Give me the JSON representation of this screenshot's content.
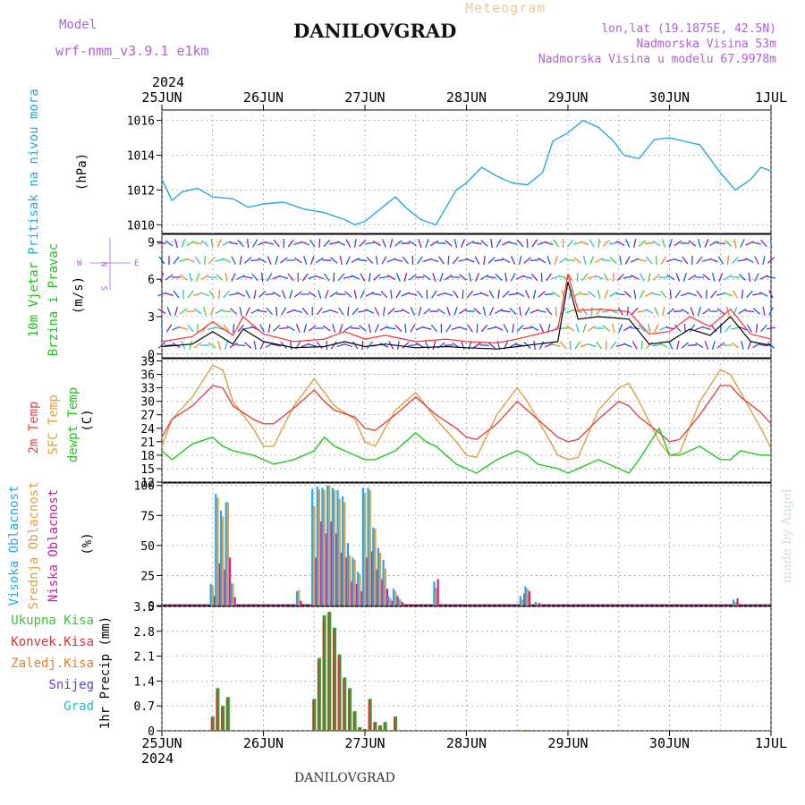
{
  "header": {
    "model_label": "Model",
    "model_name": "wrf-nmm_v3.9.1 e1km",
    "location": "DANILOVGRAD",
    "meteogram_label": "Meteogram",
    "lonlat": "lon,lat (19.1875E, 42.5N)",
    "elevation": "Nadmorska Visina 53m",
    "model_elevation": "Nadmorska Visina u modelu 67.9978m",
    "year_top": "2024",
    "year_bottom": "2024",
    "footer_location": "DANILOVGRAD",
    "watermark": "made by Angel"
  },
  "colors": {
    "pressure": "#2aa8e0",
    "t2m": "#e04848",
    "sfc": "#e0a040",
    "dewpt": "#20c820",
    "high_cloud": "#20a8f0",
    "mid_cloud": "#e0a040",
    "low_cloud": "#d020a0",
    "total_precip": "#30a030",
    "conv_precip": "#e03030",
    "wind_speed": "#000000",
    "wind_gust": "#ff3030"
  },
  "chart_data": [
    {
      "type": "line",
      "title": "",
      "ylabel_name": "Pritisak na nivou mora",
      "ylabel_unit": "(hPa)",
      "ylim": [
        1009.5,
        1016.6
      ],
      "yticks": [
        1010,
        1012,
        1014,
        1016
      ],
      "x_days": [
        "25JUN",
        "26JUN",
        "27JUN",
        "28JUN",
        "29JUN",
        "30JUN",
        "1JUL"
      ],
      "series": [
        {
          "x_day": [
            0,
            0.1,
            0.2,
            0.35,
            0.5,
            0.7,
            0.85,
            1.0,
            1.2,
            1.4,
            1.6,
            1.8,
            1.9,
            2.0,
            2.15,
            2.3,
            2.4,
            2.55,
            2.7,
            2.8,
            2.9,
            3.0,
            3.15,
            3.3,
            3.45,
            3.6,
            3.75,
            3.85,
            4.0,
            4.15,
            4.3,
            4.45,
            4.55,
            4.7,
            4.85,
            5.0,
            5.15,
            5.3,
            5.5,
            5.65,
            5.8,
            5.9,
            6.0
          ],
          "values": [
            1012.6,
            1011.4,
            1011.9,
            1012.1,
            1011.6,
            1011.5,
            1011.0,
            1011.2,
            1011.3,
            1010.9,
            1010.7,
            1010.3,
            1010.0,
            1010.2,
            1010.9,
            1011.6,
            1011.0,
            1010.3,
            1010.0,
            1011.0,
            1012.0,
            1012.4,
            1013.3,
            1012.8,
            1012.4,
            1012.3,
            1013.0,
            1014.8,
            1015.3,
            1016.0,
            1015.6,
            1014.8,
            1014.0,
            1013.8,
            1014.9,
            1015.0,
            1014.8,
            1014.6,
            1013.0,
            1012.0,
            1012.6,
            1013.3,
            1013.1
          ]
        }
      ]
    },
    {
      "type": "line",
      "title": "",
      "ylabel_name": [
        "10m Vjetar",
        "Brzina i Pravac"
      ],
      "ylabel_unit": "(m/s)",
      "compass": {
        "n": "N",
        "s": "S",
        "w": "W",
        "e": "E"
      },
      "ylim": [
        -0.3,
        9.6
      ],
      "yticks": [
        0,
        3,
        6,
        9
      ],
      "series": [
        {
          "name": "speed",
          "x_day": [
            0,
            0.3,
            0.5,
            0.7,
            0.8,
            1.0,
            1.3,
            1.6,
            1.8,
            2.0,
            2.2,
            2.5,
            2.8,
            3.0,
            3.3,
            3.5,
            3.7,
            3.9,
            4.0,
            4.1,
            4.3,
            4.6,
            4.8,
            5.0,
            5.2,
            5.4,
            5.6,
            5.8,
            6.0
          ],
          "values": [
            0.6,
            0.8,
            1.8,
            0.8,
            2.0,
            1.0,
            0.5,
            0.6,
            1.0,
            0.6,
            0.8,
            0.5,
            0.6,
            0.5,
            0.4,
            0.6,
            0.8,
            1.0,
            5.8,
            2.8,
            3.0,
            2.8,
            0.8,
            1.0,
            2.0,
            1.5,
            3.0,
            1.0,
            0.7
          ]
        },
        {
          "name": "gust",
          "x_day": [
            0,
            0.3,
            0.5,
            0.7,
            0.8,
            1.0,
            1.3,
            1.6,
            1.8,
            2.0,
            2.2,
            2.5,
            2.8,
            3.0,
            3.3,
            3.5,
            3.7,
            3.9,
            4.0,
            4.1,
            4.3,
            4.6,
            4.8,
            5.0,
            5.2,
            5.4,
            5.6,
            5.8,
            6.0
          ],
          "values": [
            1.0,
            1.4,
            2.6,
            1.5,
            3.0,
            1.6,
            1.0,
            1.2,
            1.8,
            1.2,
            1.5,
            1.0,
            1.2,
            1.0,
            0.9,
            1.2,
            1.6,
            2.0,
            6.4,
            3.5,
            3.6,
            3.4,
            1.6,
            1.8,
            3.0,
            2.2,
            3.6,
            1.6,
            1.2
          ]
        }
      ]
    },
    {
      "type": "line",
      "title": "",
      "ylabel_names": [
        "2m Temp",
        "SFC Temp",
        "dewpt Temp"
      ],
      "ylabel_unit": "(C)",
      "ylim": [
        12,
        39.5
      ],
      "yticks": [
        12,
        15,
        18,
        21,
        24,
        27,
        30,
        33,
        36,
        39
      ],
      "series": [
        {
          "name": "2m Temp",
          "x_day": [
            0,
            0.1,
            0.3,
            0.5,
            0.6,
            0.7,
            0.9,
            1.0,
            1.1,
            1.3,
            1.5,
            1.6,
            1.7,
            1.9,
            2.0,
            2.1,
            2.3,
            2.5,
            2.6,
            2.7,
            2.9,
            3.0,
            3.1,
            3.3,
            3.5,
            3.6,
            3.7,
            3.9,
            4.0,
            4.1,
            4.3,
            4.5,
            4.6,
            4.7,
            4.9,
            5.0,
            5.1,
            5.3,
            5.5,
            5.6,
            5.7,
            5.9,
            6.0
          ],
          "values": [
            22,
            26,
            29,
            33.5,
            33,
            29,
            26,
            25,
            25,
            28.5,
            32.5,
            30,
            28,
            26.5,
            24,
            23.5,
            27,
            31,
            29,
            27,
            24,
            22,
            21.5,
            25,
            30,
            28,
            26,
            22,
            21,
            21.5,
            26,
            30,
            29,
            26.5,
            23,
            21,
            21.5,
            27,
            33.5,
            33.5,
            31,
            27.5,
            25
          ]
        },
        {
          "name": "SFC Temp",
          "x_day": [
            0,
            0.1,
            0.3,
            0.5,
            0.6,
            0.7,
            0.9,
            1.0,
            1.1,
            1.3,
            1.5,
            1.6,
            1.7,
            1.9,
            2.0,
            2.1,
            2.3,
            2.5,
            2.6,
            2.7,
            2.9,
            3.0,
            3.1,
            3.3,
            3.5,
            3.6,
            3.7,
            3.9,
            4.0,
            4.1,
            4.3,
            4.5,
            4.6,
            4.7,
            4.9,
            5.0,
            5.1,
            5.3,
            5.5,
            5.6,
            5.7,
            5.9,
            6.0
          ],
          "values": [
            20,
            26,
            31,
            38,
            37,
            30,
            24,
            20,
            20,
            29,
            35,
            32,
            29,
            26,
            21,
            20,
            28,
            32,
            29,
            26,
            21,
            18,
            17.5,
            27,
            33,
            30,
            26,
            18,
            17,
            17.5,
            28,
            33,
            34,
            30,
            21,
            18,
            18.5,
            30,
            37,
            36,
            32,
            24,
            19.5
          ]
        },
        {
          "name": "dewpt Temp",
          "x_day": [
            0,
            0.1,
            0.3,
            0.5,
            0.6,
            0.7,
            0.9,
            1.0,
            1.1,
            1.3,
            1.5,
            1.6,
            1.7,
            1.9,
            2.0,
            2.1,
            2.3,
            2.5,
            2.6,
            2.7,
            2.9,
            3.0,
            3.1,
            3.3,
            3.5,
            3.6,
            3.7,
            3.9,
            4.0,
            4.1,
            4.3,
            4.5,
            4.6,
            4.7,
            4.9,
            5.0,
            5.1,
            5.3,
            5.5,
            5.6,
            5.7,
            5.9,
            6.0
          ],
          "values": [
            19,
            17,
            20.5,
            22,
            20,
            19,
            18,
            17,
            16,
            17,
            19,
            22,
            20,
            18,
            17,
            17,
            19,
            23,
            21,
            20,
            16,
            15,
            14,
            17,
            19,
            18,
            16,
            15,
            14,
            15,
            17,
            15,
            14,
            17,
            24,
            18,
            18,
            20,
            17,
            17,
            19,
            18,
            18
          ]
        }
      ]
    },
    {
      "type": "bar",
      "title": "",
      "ylabel_names": [
        "Visoka Oblacnost",
        "Srednja Oblacnost",
        "Niska Oblacnost"
      ],
      "ylabel_unit": "(%)",
      "ylim": [
        0,
        102
      ],
      "yticks": [
        0,
        25,
        50,
        75,
        100
      ],
      "x_day": [
        0.5,
        0.55,
        0.6,
        0.65,
        0.7,
        1.35,
        1.5,
        1.55,
        1.6,
        1.65,
        1.7,
        1.75,
        1.8,
        1.85,
        1.9,
        1.95,
        2.0,
        2.05,
        2.1,
        2.15,
        2.2,
        2.25,
        2.3,
        2.35,
        2.7,
        3.55,
        3.6,
        3.7,
        5.65
      ],
      "series": [
        {
          "name": "Visoka Oblacnost",
          "values": [
            18,
            93,
            79,
            86,
            19,
            12,
            97,
            99,
            98,
            100,
            98,
            96,
            91,
            52,
            40,
            28,
            98,
            98,
            65,
            48,
            38,
            8,
            14,
            6,
            20,
            8,
            16,
            3,
            5
          ]
        },
        {
          "name": "Srednja Oblacnost",
          "values": [
            17,
            90,
            74,
            86,
            18,
            13,
            83,
            97,
            96,
            100,
            96,
            89,
            86,
            42,
            38,
            26,
            94,
            96,
            64,
            44,
            31,
            6,
            12,
            5,
            15,
            5,
            14,
            2,
            3
          ]
        },
        {
          "name": "Niska Oblacnost",
          "values": [
            8,
            35,
            30,
            40,
            7,
            4,
            40,
            70,
            60,
            70,
            60,
            44,
            40,
            20,
            18,
            12,
            40,
            45,
            30,
            22,
            14,
            4,
            8,
            3,
            22,
            10,
            12,
            2,
            6
          ]
        }
      ]
    },
    {
      "type": "bar",
      "title": "",
      "ylabel_names": [
        "Ukupna Kisa",
        "Konvek.Kisa",
        "Zaledj.Kisa",
        "Snijeg",
        "Grad"
      ],
      "ylabel_unit": "1hr Precip (mm)",
      "ylim": [
        0,
        3.5
      ],
      "yticks": [
        0,
        0.7,
        1.4,
        2.1,
        2.8,
        3.5
      ],
      "x_day": [
        0.5,
        0.55,
        0.6,
        0.65,
        1.5,
        1.55,
        1.6,
        1.65,
        1.7,
        1.75,
        1.8,
        1.85,
        1.9,
        1.95,
        2.0,
        2.05,
        2.1,
        2.15,
        2.2,
        2.3,
        3.6
      ],
      "series": [
        {
          "name": "Ukupna Kisa",
          "values": [
            0.4,
            1.2,
            0.7,
            0.95,
            0.9,
            2.05,
            3.25,
            3.35,
            2.9,
            2.15,
            1.5,
            1.2,
            0.55,
            0.1,
            0.05,
            0.9,
            0.25,
            0.15,
            0.25,
            0.4,
            0.02
          ]
        },
        {
          "name": "Konvek.Kisa",
          "values": [
            0.35,
            1.1,
            0.65,
            0.9,
            0.85,
            2.0,
            3.1,
            3.3,
            2.8,
            2.1,
            1.45,
            1.15,
            0.5,
            0.1,
            0.05,
            0.85,
            0.22,
            0.12,
            0.2,
            0.38,
            0.02
          ]
        }
      ]
    }
  ]
}
